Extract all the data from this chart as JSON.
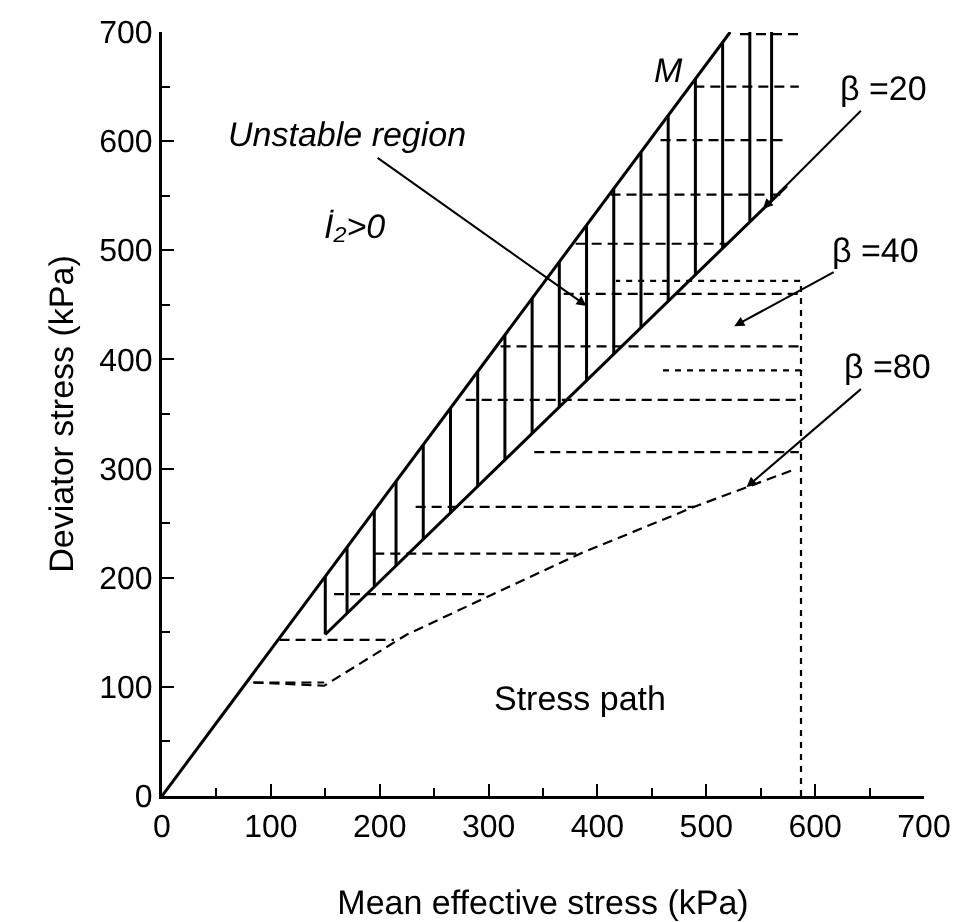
{
  "chart_data": {
    "type": "line",
    "xlabel": "Mean effective stress (kPa)",
    "ylabel": "Deviator stress (kPa)",
    "xlim": [
      0,
      700
    ],
    "ylim": [
      0,
      700
    ],
    "xticks": [
      0,
      100,
      200,
      300,
      400,
      500,
      600,
      700
    ],
    "yticks": [
      0,
      100,
      200,
      300,
      400,
      500,
      600,
      700
    ],
    "grid": false,
    "marker": "none",
    "series": [
      {
        "color": "#000000",
        "line_style": "solid",
        "x": [
          0,
          522
        ],
        "values": [
          0,
          700
        ]
      },
      {
        "color": "#000000",
        "line_style": "solid",
        "x": [
          150,
          574
        ],
        "values": [
          148,
          559
        ]
      },
      {
        "color": "#000000",
        "line_style": "solid",
        "x": [
          150,
          150,
          null,
          170,
          170,
          null,
          195,
          195,
          null,
          215,
          215,
          null,
          240,
          240,
          null,
          265,
          265,
          null,
          290,
          290,
          null,
          315,
          315,
          null,
          340,
          340,
          null,
          365,
          365,
          null,
          390,
          390,
          null,
          415,
          415,
          null,
          440,
          440,
          null,
          465,
          465,
          null,
          490,
          490,
          null,
          515,
          515,
          null,
          540,
          540,
          null,
          560,
          560
        ],
        "values": [
          201,
          148,
          null,
          228,
          167,
          null,
          262,
          192,
          null,
          288,
          211,
          null,
          322,
          235,
          null,
          355,
          259,
          null,
          389,
          284,
          null,
          422,
          308,
          null,
          456,
          332,
          null,
          489,
          356,
          null,
          523,
          381,
          null,
          556,
          405,
          null,
          590,
          429,
          null,
          624,
          453,
          null,
          657,
          477,
          null,
          691,
          502,
          null,
          700,
          526,
          null,
          700,
          545
        ]
      },
      {
        "color": "#000000",
        "line_style": "dashed",
        "x": [
          84,
          149,
          225,
          384,
          489,
          583
        ],
        "values": [
          104,
          101,
          148,
          222,
          265,
          300
        ]
      },
      {
        "color": "#000000",
        "line_style": "dashed",
        "x": [
          84,
          149
        ],
        "values": [
          104,
          104
        ]
      },
      {
        "color": "#000000",
        "line_style": "dashed",
        "x": [
          108,
          213
        ],
        "values": [
          143,
          143
        ]
      },
      {
        "color": "#000000",
        "line_style": "dashed",
        "x": [
          158,
          296
        ],
        "values": [
          185,
          185
        ]
      },
      {
        "color": "#000000",
        "line_style": "dashed",
        "x": [
          195,
          384
        ],
        "values": [
          222,
          222
        ]
      },
      {
        "color": "#000000",
        "line_style": "dashed",
        "x": [
          233,
          489
        ],
        "values": [
          265,
          265
        ]
      },
      {
        "color": "#000000",
        "line_style": "dashed",
        "x": [
          342,
          585
        ],
        "values": [
          315,
          315
        ]
      },
      {
        "color": "#000000",
        "line_style": "dashed",
        "x": [
          279,
          585
        ],
        "values": [
          363,
          363
        ]
      },
      {
        "color": "#000000",
        "line_style": "dashed",
        "x": [
          311,
          585
        ],
        "values": [
          412,
          412
        ]
      },
      {
        "color": "#000000",
        "line_style": "dashed",
        "x": [
          369,
          585
        ],
        "values": [
          460,
          460
        ]
      },
      {
        "color": "#000000",
        "line_style": "dashed",
        "x": [
          380,
          520
        ],
        "values": [
          506,
          506
        ]
      },
      {
        "color": "#000000",
        "line_style": "dashed",
        "x": [
          412,
          568
        ],
        "values": [
          551,
          551
        ]
      },
      {
        "color": "#000000",
        "line_style": "dashed",
        "x": [
          458,
          572
        ],
        "values": [
          601,
          601
        ]
      },
      {
        "color": "#000000",
        "line_style": "dashed",
        "x": [
          489,
          585
        ],
        "values": [
          650,
          650
        ]
      },
      {
        "color": "#000000",
        "line_style": "dashed",
        "x": [
          531,
          585
        ],
        "values": [
          698,
          698
        ]
      },
      {
        "color": "#000000",
        "line_style": "dotted",
        "x": [
          587,
          587,
          417
        ],
        "values": [
          0,
          472,
          472
        ]
      },
      {
        "color": "#000000",
        "line_style": "dotted",
        "x": [
          587,
          458
        ],
        "values": [
          390,
          390
        ]
      }
    ],
    "annotations": [
      "M",
      {
        "text": "Unstable region",
        "x": 390,
        "y": 449
      },
      "İ₂>0",
      {
        "text": "β =20",
        "x": 552,
        "y": 538
      },
      "β =40",
      {
        "text": "β =80",
        "x": 537,
        "y": 283
      },
      "Stress path"
    ]
  }
}
